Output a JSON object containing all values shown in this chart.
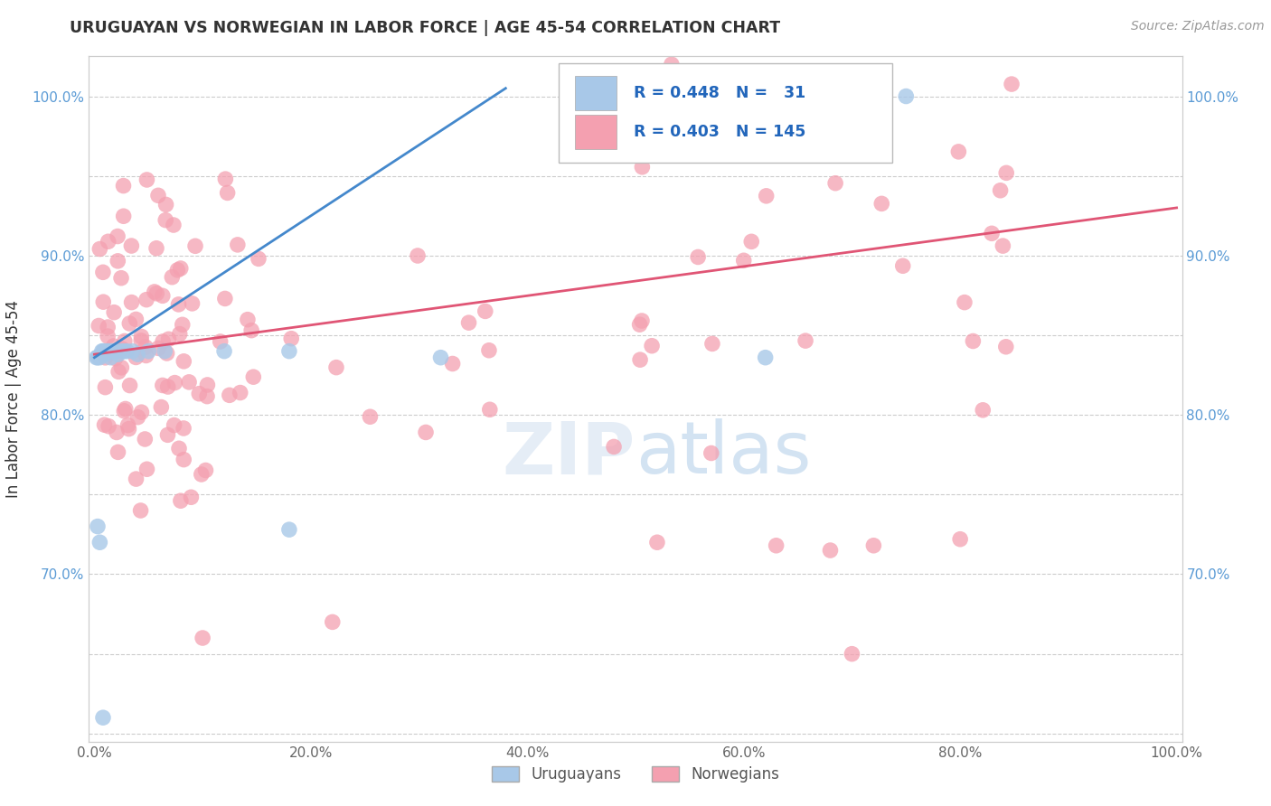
{
  "title": "URUGUAYAN VS NORWEGIAN IN LABOR FORCE | AGE 45-54 CORRELATION CHART",
  "source": "Source: ZipAtlas.com",
  "ylabel": "In Labor Force | Age 45-54",
  "uruguayan_R": 0.448,
  "uruguayan_N": 31,
  "norwegian_R": 0.403,
  "norwegian_N": 145,
  "uruguayan_color": "#a8c8e8",
  "norwegian_color": "#f4a0b0",
  "uruguayan_line_color": "#4488cc",
  "norwegian_line_color": "#e05575",
  "background_color": "#ffffff",
  "legend_uruguayans": "Uruguayans",
  "legend_norwegians": "Norwegians",
  "figsize": [
    14.06,
    8.92
  ],
  "dpi": 100,
  "xlim": [
    -0.005,
    1.005
  ],
  "ylim": [
    0.595,
    1.025
  ],
  "y_ticks": [
    0.6,
    0.65,
    0.7,
    0.75,
    0.8,
    0.85,
    0.9,
    0.95,
    1.0
  ],
  "y_tick_labels_left": [
    "",
    "",
    "70.0%",
    "",
    "80.0%",
    "",
    "90.0%",
    "",
    "100.0%"
  ],
  "y_tick_labels_right": [
    "",
    "",
    "70.0%",
    "",
    "80.0%",
    "",
    "90.0%",
    "",
    "100.0%"
  ],
  "x_ticks": [
    0.0,
    0.2,
    0.4,
    0.6,
    0.8,
    1.0
  ],
  "x_tick_labels": [
    "0.0%",
    "20.0%",
    "40.0%",
    "60.0%",
    "80.0%",
    "100.0%"
  ],
  "watermark_text": "ZIPatlas",
  "uru_line_x0": 0.0,
  "uru_line_y0": 0.836,
  "uru_line_x1": 0.38,
  "uru_line_y1": 1.005,
  "nor_line_x0": 0.0,
  "nor_line_y0": 0.838,
  "nor_line_x1": 1.0,
  "nor_line_y1": 0.93
}
